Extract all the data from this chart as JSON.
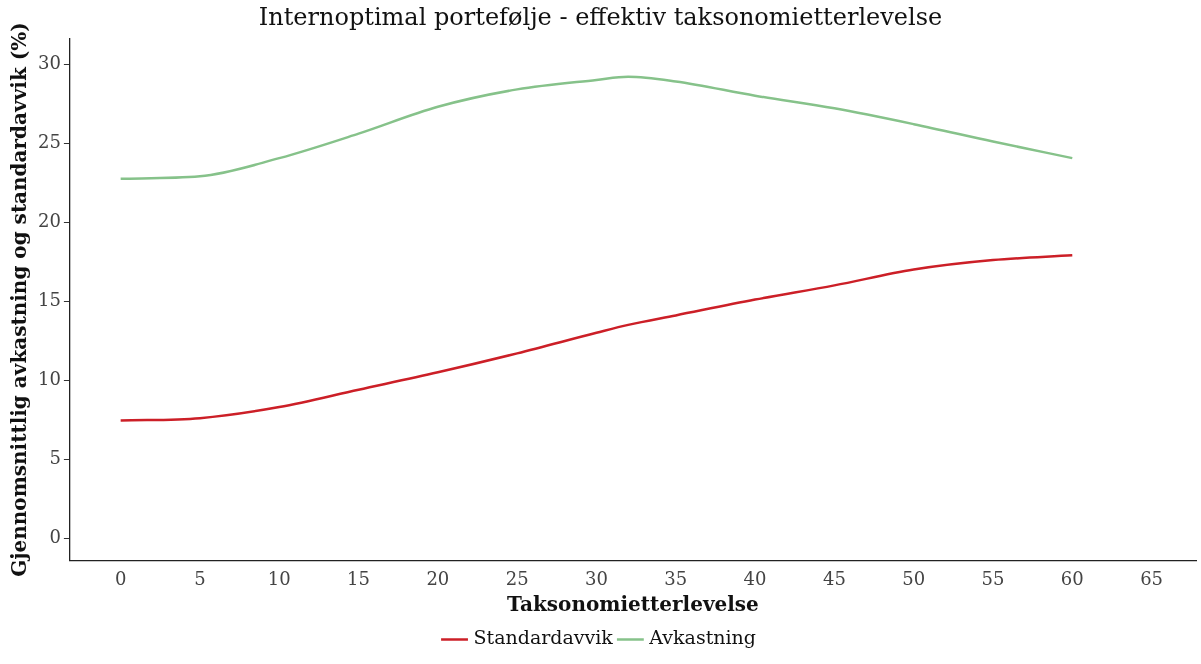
{
  "chart_data": {
    "type": "line",
    "title": "Internoptimal portefølje - effektiv taksonomietterlevelse",
    "xlabel": "Taksonomietterlevelse",
    "ylabel": "Gjennomsnittlig avkastning og standardavvik (%)",
    "x": [
      0,
      5,
      10,
      15,
      20,
      25,
      30,
      32,
      35,
      40,
      45,
      50,
      55,
      60
    ],
    "series": [
      {
        "name": "Standardavvik",
        "color": "#cc1f27",
        "values": [
          7.45,
          7.6,
          8.3,
          9.4,
          10.5,
          11.7,
          13.0,
          13.5,
          14.1,
          15.1,
          16.0,
          17.0,
          17.6,
          17.9
        ]
      },
      {
        "name": "Avkastning",
        "color": "#86c28a",
        "values": [
          22.75,
          22.9,
          24.05,
          25.6,
          27.3,
          28.4,
          29.0,
          29.2,
          28.9,
          28.0,
          27.2,
          26.2,
          25.1,
          24.05
        ]
      }
    ],
    "xlim": [
      -3.2,
      67.8
    ],
    "xticks": [
      0,
      5,
      10,
      15,
      20,
      25,
      30,
      35,
      40,
      45,
      50,
      55,
      60,
      65
    ],
    "ylim": [
      -1.4,
      31.6
    ],
    "yticks": [
      0,
      5,
      10,
      15,
      20,
      25,
      30
    ],
    "grid": false,
    "legend": "bottom",
    "marker": "none",
    "line_style": "solid"
  }
}
